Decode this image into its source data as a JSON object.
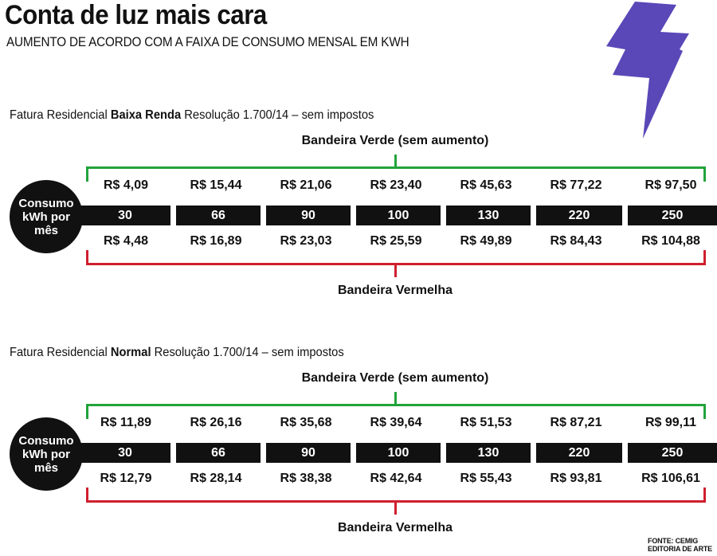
{
  "header": {
    "title": "Conta de luz mais cara",
    "subtitle": "AUMENTO DE ACORDO COM A FAIXA DE CONSUMO MENSAL EM KWH"
  },
  "colors": {
    "green": "#22a33a",
    "red": "#cf1f2e",
    "bolt": "#5a48b8",
    "dark": "#111111"
  },
  "consumo_label": [
    "Consumo",
    "kWh por",
    "mês"
  ],
  "sections": [
    {
      "caption_pre": "Fatura Residencial ",
      "caption_bold": "Baixa Renda",
      "caption_post": " Resolução 1.700/14 – sem impostos",
      "green_label": "Bandeira Verde (sem aumento)",
      "red_label": "Bandeira Vermelha",
      "bands": [
        "30",
        "66",
        "90",
        "100",
        "130",
        "220",
        "250"
      ],
      "green_prices": [
        "R$ 4,09",
        "R$ 15,44",
        "R$ 21,06",
        "R$ 23,40",
        "R$ 45,63",
        "R$ 77,22",
        "R$ 97,50"
      ],
      "red_prices": [
        "R$ 4,48",
        "R$ 16,89",
        "R$ 23,03",
        "R$ 25,59",
        "R$ 49,89",
        "R$ 84,43",
        "R$ 104,88"
      ]
    },
    {
      "caption_pre": "Fatura Residencial ",
      "caption_bold": "Normal",
      "caption_post": " Resolução 1.700/14 – sem impostos",
      "green_label": "Bandeira Verde (sem aumento)",
      "red_label": "Bandeira Vermelha",
      "bands": [
        "30",
        "66",
        "90",
        "100",
        "130",
        "220",
        "250"
      ],
      "green_prices": [
        "R$ 11,89",
        "R$ 26,16",
        "R$ 35,68",
        "R$ 39,64",
        "R$ 51,53",
        "R$ 87,21",
        "R$ 99,11"
      ],
      "red_prices": [
        "R$ 12,79",
        "R$ 28,14",
        "R$ 38,38",
        "R$ 42,64",
        "R$ 55,43",
        "R$ 93,81",
        "R$ 106,61"
      ]
    }
  ],
  "credits": {
    "source": "FONTE: CEMIG",
    "art": "EDITORIA DE ARTE"
  }
}
